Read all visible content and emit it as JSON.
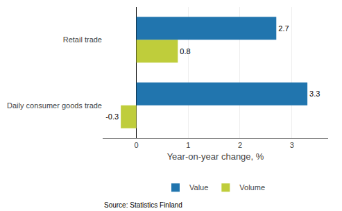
{
  "chart_data": {
    "type": "bar",
    "orientation": "horizontal",
    "categories": [
      "Daily consumer goods trade",
      "Retail trade"
    ],
    "series": [
      {
        "name": "Value",
        "color": "#2175AE",
        "values": [
          3.3,
          2.7
        ]
      },
      {
        "name": "Volume",
        "color": "#BFCD3B",
        "values": [
          -0.3,
          0.8
        ]
      }
    ],
    "xlabel": "Year-on-year change, %",
    "source": "Source: Statistics Finland",
    "xlim": [
      -0.65,
      3.7
    ],
    "xticks": [
      0,
      1,
      2,
      3
    ],
    "data_labels": true,
    "grid": true,
    "legend": "bottom"
  }
}
